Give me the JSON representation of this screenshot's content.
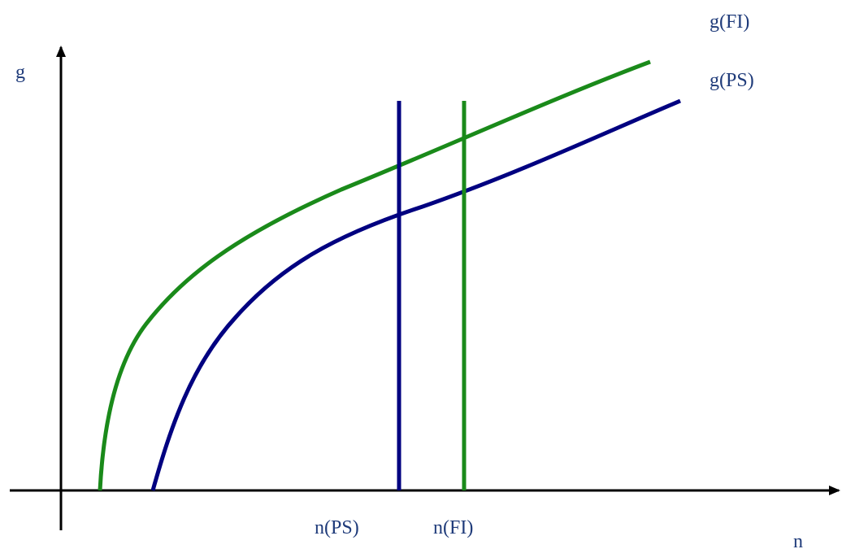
{
  "colors": {
    "axis": "#000000",
    "ps": "#000080",
    "fi": "#1a8a1a",
    "label": "#1f3b7a"
  },
  "labels": {
    "y_axis": "g",
    "x_axis": "n",
    "curve_fi": "g(FI)",
    "curve_ps": "g(PS)",
    "vline_ps": "n(PS)",
    "vline_fi": "n(FI)"
  }
}
